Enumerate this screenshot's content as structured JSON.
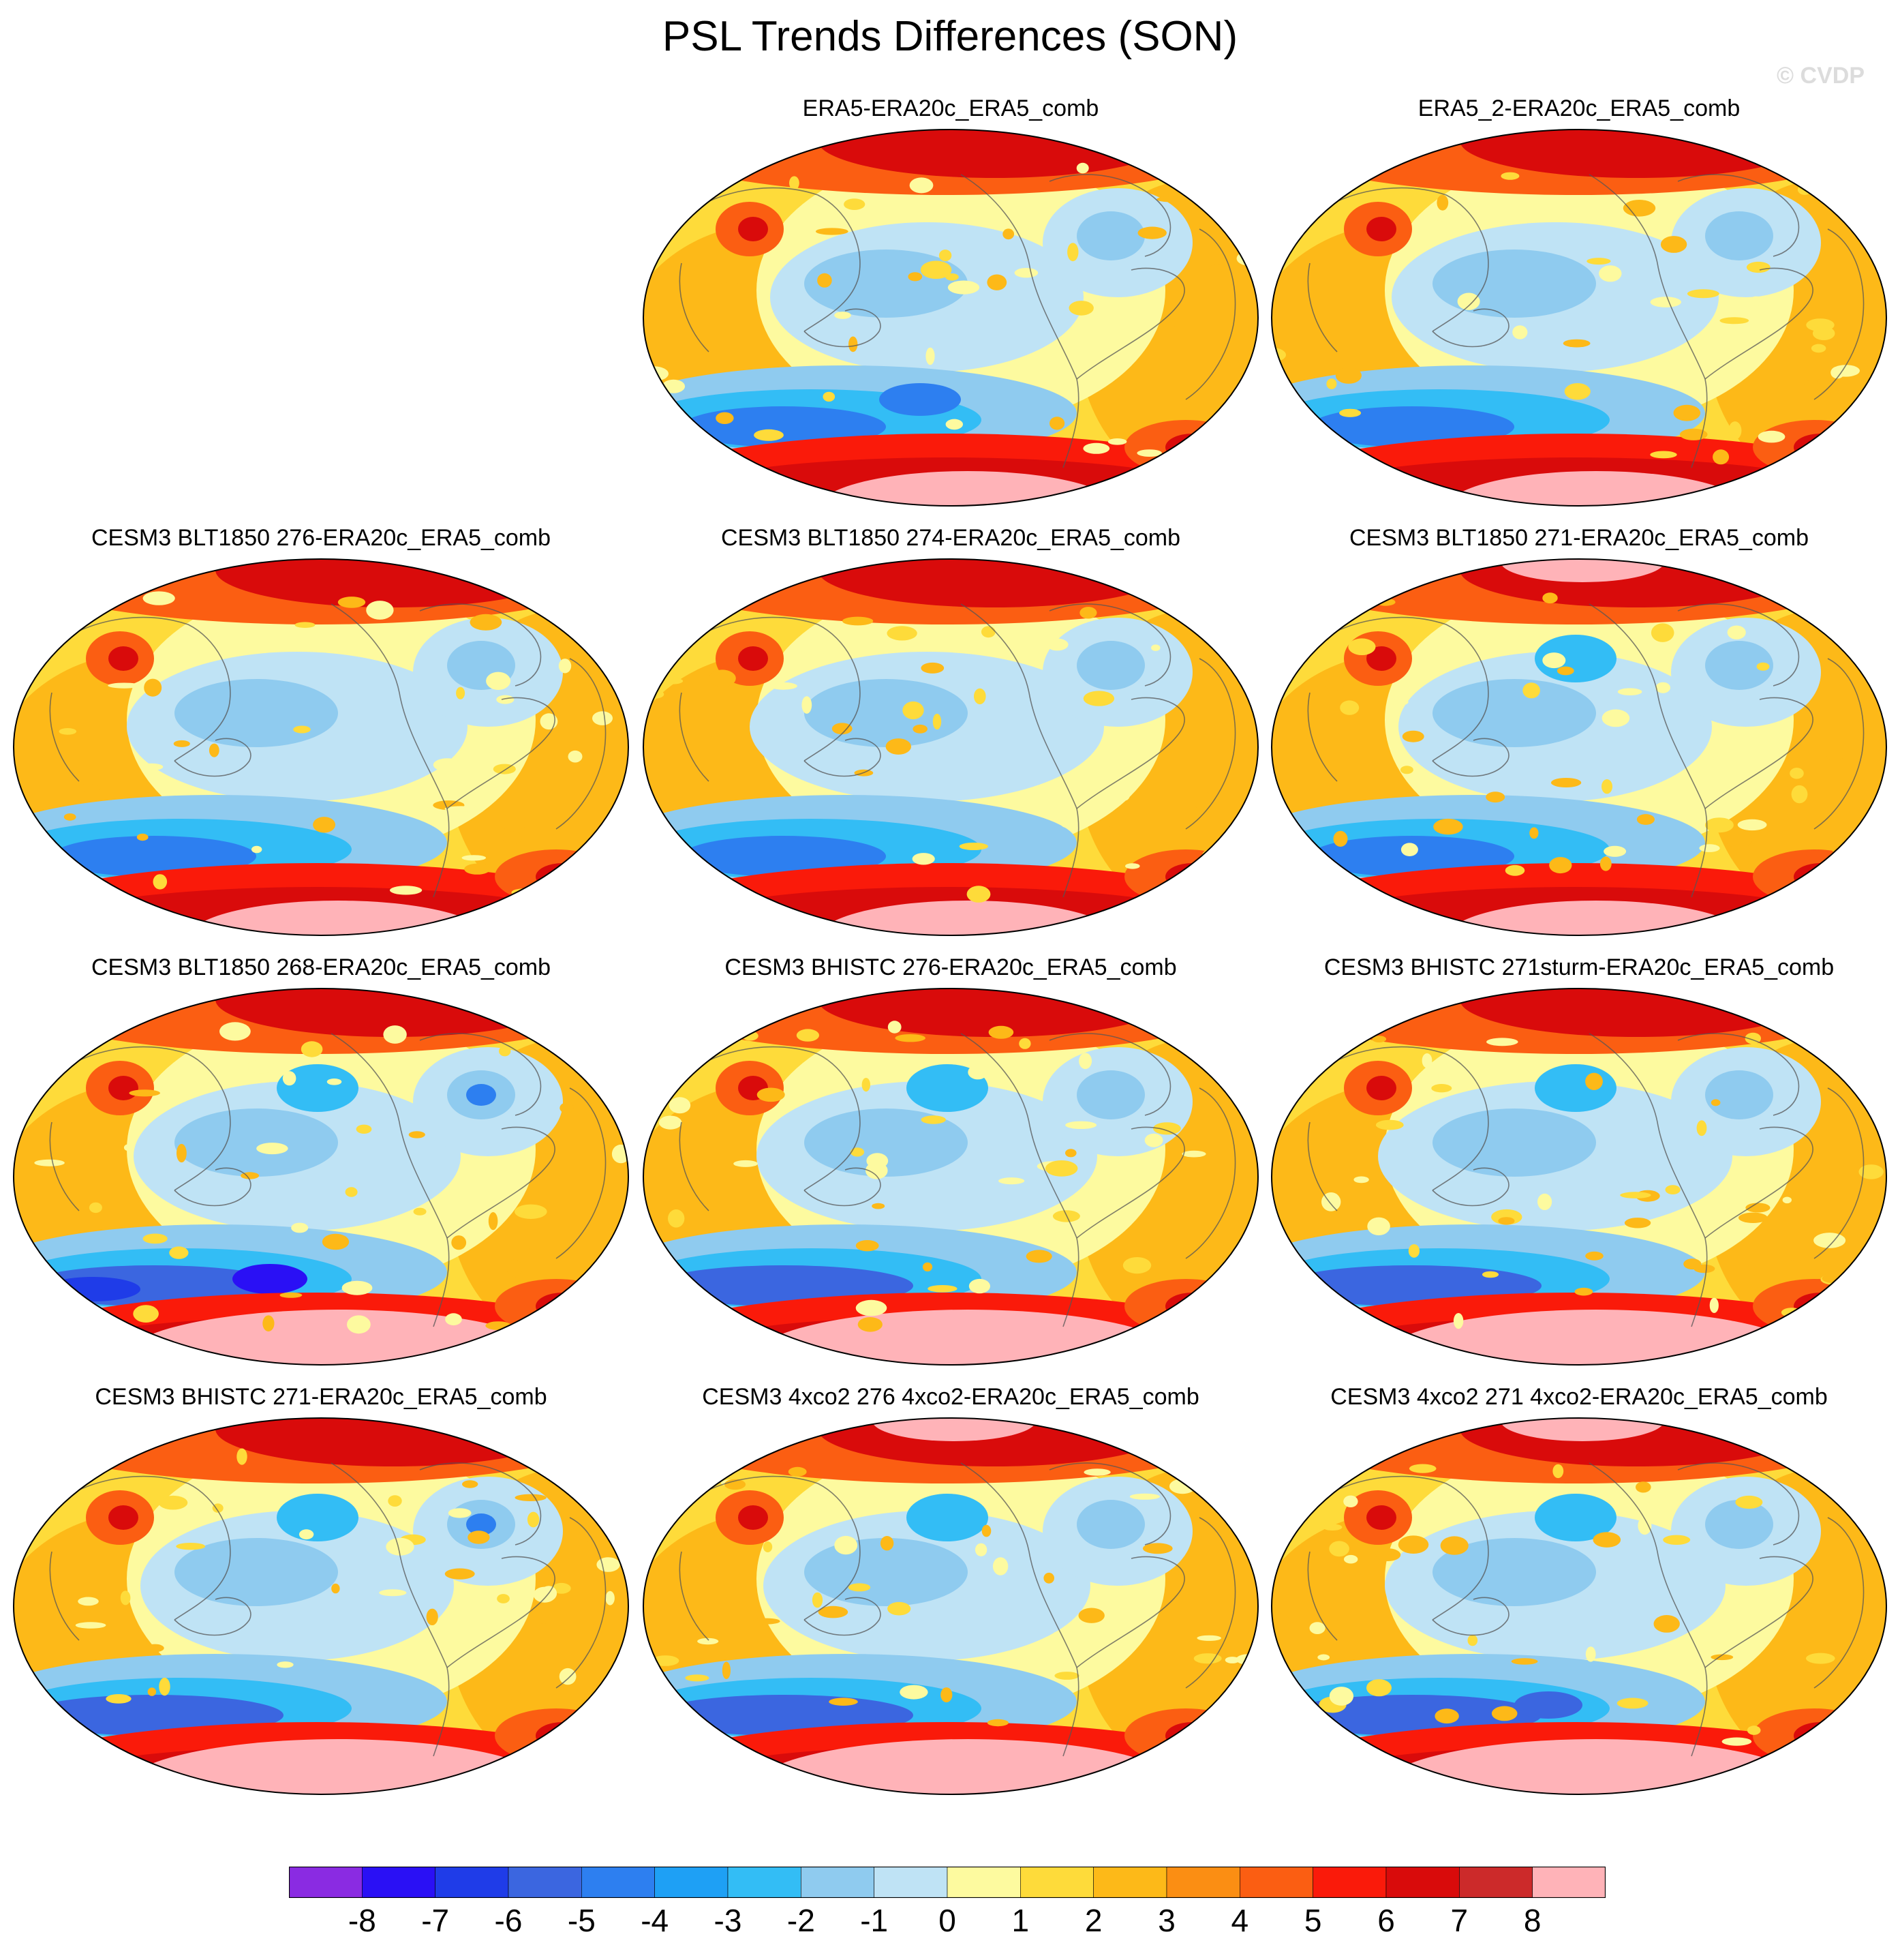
{
  "title": "PSL Trends Differences (SON)",
  "copyright": "© CVDP",
  "panels": [
    {
      "title": "",
      "empty": true
    },
    {
      "title": "ERA5-ERA20c_ERA5_comb",
      "variant": 0
    },
    {
      "title": "ERA5_2-ERA20c_ERA5_comb",
      "variant": 1
    },
    {
      "title": "CESM3 BLT1850 276-ERA20c_ERA5_comb",
      "variant": 2
    },
    {
      "title": "CESM3 BLT1850 274-ERA20c_ERA5_comb",
      "variant": 3
    },
    {
      "title": "CESM3 BLT1850 271-ERA20c_ERA5_comb",
      "variant": 4
    },
    {
      "title": "CESM3 BLT1850 268-ERA20c_ERA5_comb",
      "variant": 5
    },
    {
      "title": "CESM3 BHISTC 276-ERA20c_ERA5_comb",
      "variant": 6
    },
    {
      "title": "CESM3 BHISTC 271sturm-ERA20c_ERA5_comb",
      "variant": 7
    },
    {
      "title": "CESM3 BHISTC 271-ERA20c_ERA5_comb",
      "variant": 8
    },
    {
      "title": "CESM3 4xco2 276 4xco2-ERA20c_ERA5_comb",
      "variant": 9
    },
    {
      "title": "CESM3 4xco2 271 4xco2-ERA20c_ERA5_comb",
      "variant": 10
    }
  ],
  "colorbar": {
    "labels": [
      "-8",
      "-7",
      "-6",
      "-5",
      "-4",
      "-3",
      "-2",
      "-1",
      "0",
      "1",
      "2",
      "3",
      "4",
      "5",
      "6",
      "7",
      "8"
    ],
    "colors": [
      "#8a2be2",
      "#2a10f5",
      "#1f3ce8",
      "#3b66e0",
      "#2d7ff0",
      "#1ea0f5",
      "#33bdf5",
      "#8fcbef",
      "#bfe3f5",
      "#fdfa9f",
      "#fedb3a",
      "#fdb918",
      "#fb8e13",
      "#fb5e12",
      "#fa1a0a",
      "#d90b0b",
      "#cc2a2a",
      "#ffb3b8"
    ]
  }
}
